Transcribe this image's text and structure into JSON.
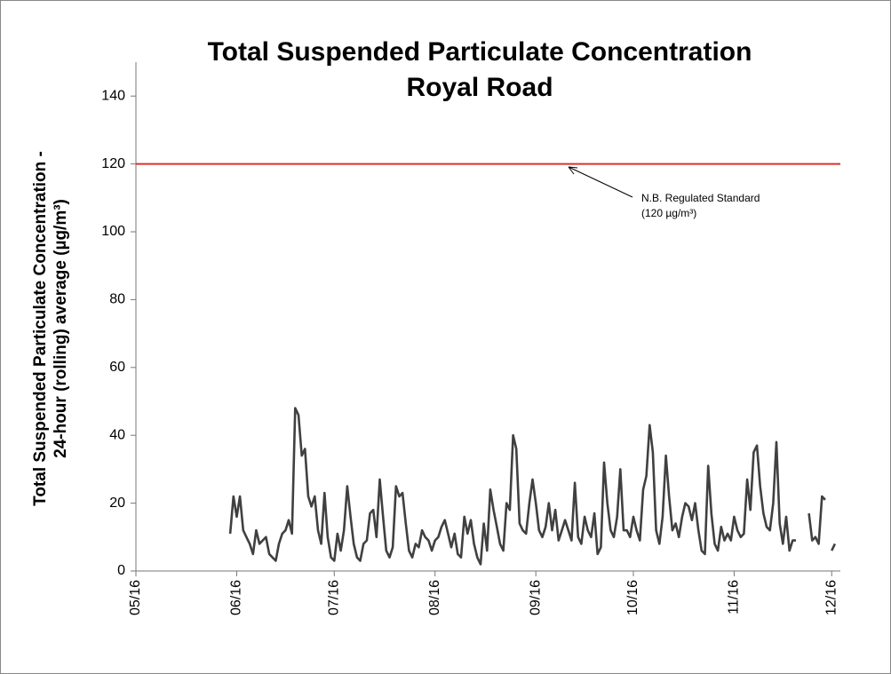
{
  "chart_data": {
    "type": "line",
    "title": [
      "Total Suspended Particulate Concentration",
      "Royal Road"
    ],
    "y_label": [
      "Total Suspended Particulate Concentration -",
      "24-hour (rolling) average (µg/m³)"
    ],
    "categories": [
      "05/16",
      null,
      null,
      null,
      null,
      null,
      null,
      null,
      null,
      null,
      null,
      null,
      null,
      null,
      null,
      null,
      null,
      null,
      null,
      null,
      null,
      null,
      null,
      null,
      null,
      null,
      null,
      null,
      null,
      null,
      null,
      "06/16",
      null,
      null,
      null,
      null,
      null,
      null,
      null,
      null,
      null,
      null,
      null,
      null,
      null,
      null,
      null,
      null,
      null,
      null,
      null,
      null,
      null,
      null,
      null,
      null,
      null,
      null,
      null,
      null,
      null,
      "07/16",
      null,
      null,
      null,
      null,
      null,
      null,
      null,
      null,
      null,
      null,
      null,
      null,
      null,
      null,
      null,
      null,
      null,
      null,
      null,
      null,
      null,
      null,
      null,
      null,
      null,
      null,
      null,
      null,
      null,
      null,
      "08/16",
      null,
      null,
      null,
      null,
      null,
      null,
      null,
      null,
      null,
      null,
      null,
      null,
      null,
      null,
      null,
      null,
      null,
      null,
      null,
      null,
      null,
      null,
      null,
      null,
      null,
      null,
      null,
      null,
      null,
      null,
      "09/16",
      null,
      null,
      null,
      null,
      null,
      null,
      null,
      null,
      null,
      null,
      null,
      null,
      null,
      null,
      null,
      null,
      null,
      null,
      null,
      null,
      null,
      null,
      null,
      null,
      null,
      null,
      null,
      null,
      null,
      "10/16",
      null,
      null,
      null,
      null,
      null,
      null,
      null,
      null,
      null,
      null,
      null,
      null,
      null,
      null,
      null,
      null,
      null,
      null,
      null,
      null,
      null,
      null,
      null,
      null,
      null,
      null,
      null,
      null,
      null,
      null,
      "11/16",
      null,
      null,
      null,
      null,
      null,
      null,
      null,
      null,
      null,
      null,
      null,
      null,
      null,
      null,
      null,
      null,
      null,
      null,
      null,
      null,
      null,
      null,
      null,
      null,
      null,
      null,
      null,
      null,
      null,
      "12/16",
      null
    ],
    "values": [
      null,
      null,
      null,
      null,
      null,
      null,
      null,
      null,
      null,
      null,
      null,
      null,
      null,
      null,
      null,
      null,
      null,
      null,
      null,
      null,
      null,
      null,
      null,
      null,
      null,
      null,
      null,
      null,
      null,
      11,
      22,
      16,
      22,
      12,
      10,
      8,
      5,
      12,
      8,
      9,
      10,
      5,
      4,
      3,
      8,
      11,
      12,
      15,
      11,
      48,
      46,
      34,
      36,
      22,
      19,
      22,
      12,
      8,
      23,
      10,
      4,
      3,
      11,
      6,
      12,
      25,
      16,
      8,
      4,
      3,
      8,
      9,
      17,
      18,
      10,
      27,
      16,
      6,
      4,
      7,
      25,
      22,
      23,
      14,
      6,
      4,
      8,
      7,
      12,
      10,
      9,
      6,
      9,
      10,
      13,
      15,
      11,
      7,
      11,
      5,
      4,
      16,
      11,
      15,
      8,
      4,
      2,
      14,
      6,
      24,
      18,
      13,
      8,
      6,
      20,
      18,
      40,
      36,
      14,
      12,
      11,
      20,
      27,
      20,
      12,
      10,
      13,
      20,
      12,
      18,
      9,
      12,
      15,
      12,
      9,
      26,
      10,
      8,
      16,
      12,
      10,
      17,
      5,
      7,
      32,
      20,
      12,
      10,
      16,
      30,
      12,
      12,
      10,
      16,
      12,
      9,
      24,
      28,
      43,
      35,
      12,
      8,
      16,
      34,
      22,
      12,
      14,
      10,
      16,
      20,
      19,
      15,
      20,
      12,
      6,
      5,
      31,
      17,
      8,
      6,
      13,
      9,
      11,
      9,
      16,
      12,
      10,
      11,
      27,
      18,
      35,
      37,
      25,
      17,
      13,
      12,
      20,
      38,
      14,
      8,
      16,
      6,
      9,
      9,
      null,
      null,
      null,
      17,
      9,
      10,
      8,
      22,
      21,
      null,
      6,
      8
    ],
    "color": "#404040",
    "ylim": [
      0,
      150
    ],
    "yticks": [
      0,
      20,
      40,
      60,
      80,
      100,
      120,
      140
    ],
    "reference_line": {
      "value": 120,
      "color": "#d9342b"
    },
    "annotation": [
      "N.B. Regulated Standard",
      "(120 µg/m³)"
    ]
  }
}
